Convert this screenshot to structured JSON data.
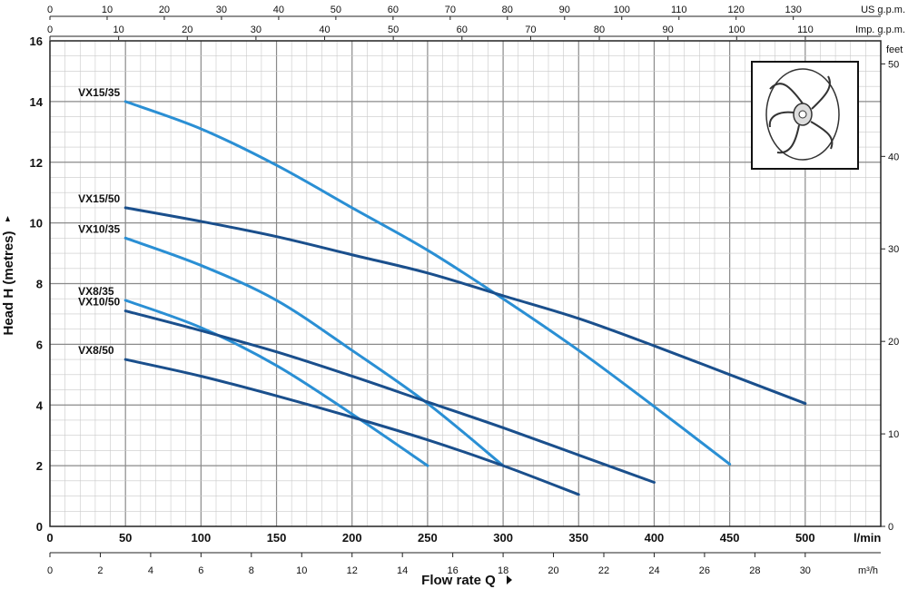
{
  "chart_data": {
    "type": "line",
    "xlabel": "Flow rate Q",
    "ylabel": "Head H (metres)",
    "x_unit": "l/min",
    "xlim": [
      0,
      550
    ],
    "ylim": [
      0,
      16
    ],
    "grid": true,
    "legend": "labels at curve start",
    "x_ticks": [
      0,
      50,
      100,
      150,
      200,
      250,
      300,
      350,
      400,
      450,
      500
    ],
    "y_ticks": [
      0,
      2,
      4,
      6,
      8,
      10,
      12,
      14,
      16
    ],
    "feet_axis": {
      "label": "feet",
      "ticks": [
        0,
        10,
        20,
        30,
        40,
        50
      ]
    },
    "us_gpm_axis": {
      "label": "US g.p.m.",
      "ticks": [
        0,
        10,
        20,
        30,
        40,
        50,
        60,
        70,
        80,
        90,
        100,
        110,
        120,
        130
      ]
    },
    "imp_gpm_axis": {
      "label": "Imp. g.p.m.",
      "ticks": [
        0,
        10,
        20,
        30,
        40,
        50,
        60,
        70,
        80,
        90,
        100,
        110
      ]
    },
    "m3h_axis": {
      "label": "m³/h",
      "ticks": [
        0,
        2,
        4,
        6,
        8,
        10,
        12,
        14,
        16,
        18,
        20,
        22,
        24,
        26,
        28,
        30
      ]
    },
    "series": [
      {
        "name": "VX15/35",
        "color": "#2a8fd4",
        "x": [
          50,
          100,
          150,
          200,
          250,
          300,
          350,
          400,
          450
        ],
        "y": [
          14.0,
          13.1,
          11.9,
          10.5,
          9.1,
          7.5,
          5.8,
          3.95,
          2.05
        ]
      },
      {
        "name": "VX15/50",
        "color": "#1a4f8c",
        "x": [
          50,
          100,
          150,
          200,
          250,
          300,
          350,
          400,
          450,
          500
        ],
        "y": [
          10.5,
          10.05,
          9.55,
          8.95,
          8.35,
          7.6,
          6.85,
          5.95,
          5.0,
          4.05
        ]
      },
      {
        "name": "VX10/35",
        "color": "#2a8fd4",
        "x": [
          50,
          100,
          150,
          200,
          250,
          300
        ],
        "y": [
          9.5,
          8.6,
          7.45,
          5.8,
          4.05,
          2.0
        ]
      },
      {
        "name": "VX8/35",
        "color": "#2a8fd4",
        "x": [
          50,
          100,
          150,
          200,
          250
        ],
        "y": [
          7.45,
          6.55,
          5.3,
          3.7,
          2.0
        ]
      },
      {
        "name": "VX10/50",
        "color": "#1a4f8c",
        "x": [
          50,
          100,
          150,
          200,
          250,
          300,
          350,
          400
        ],
        "y": [
          7.1,
          6.45,
          5.75,
          4.95,
          4.1,
          3.25,
          2.35,
          1.45
        ]
      },
      {
        "name": "VX8/50",
        "color": "#1a4f8c",
        "x": [
          50,
          100,
          150,
          200,
          250,
          300,
          350
        ],
        "y": [
          5.5,
          4.95,
          4.3,
          3.6,
          2.85,
          2.0,
          1.05
        ]
      }
    ]
  }
}
